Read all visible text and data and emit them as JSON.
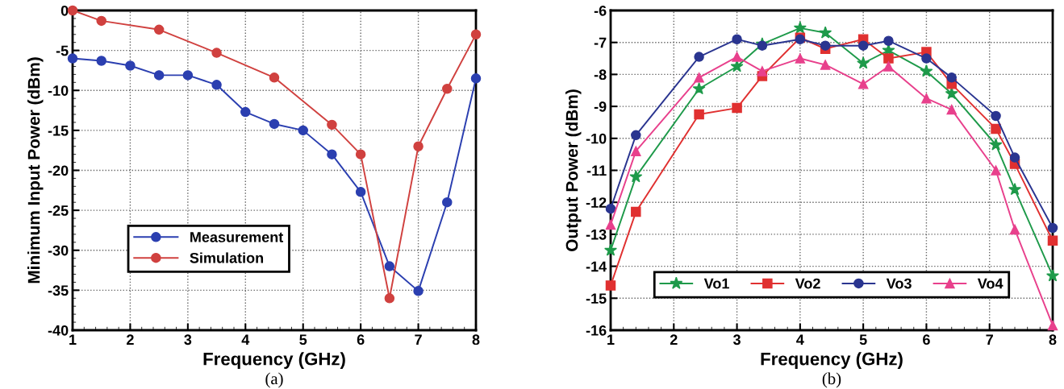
{
  "chart_data": [
    {
      "type": "line",
      "xlabel": "Frequency (GHz)",
      "ylabel": "Minimum Input Power (dBm)",
      "xlim": [
        1,
        8
      ],
      "ylim": [
        -40,
        0
      ],
      "xticks": [
        1,
        2,
        3,
        4,
        5,
        6,
        7,
        8
      ],
      "yticks": [
        -40,
        -35,
        -30,
        -25,
        -20,
        -15,
        -10,
        -5,
        0
      ],
      "grid": true,
      "legend": "bottom left",
      "line_style": "solid",
      "annotations": [
        "(a)"
      ],
      "series": [
        {
          "name": "Measurement",
          "color": "#2b3fb0",
          "marker": "circle",
          "x": [
            1,
            1.5,
            2,
            2.5,
            3,
            3.5,
            4,
            4.5,
            5,
            5.5,
            6,
            6.5,
            7,
            7.5,
            8
          ],
          "values": [
            -6,
            -6.3,
            -6.9,
            -8.1,
            -8.1,
            -9.3,
            -12.7,
            -14.2,
            -15,
            -18,
            -22.7,
            -32,
            -35.1,
            -24,
            -8.5
          ]
        },
        {
          "name": "Simulation",
          "color": "#d0413f",
          "marker": "circle",
          "x": [
            1,
            1.5,
            2.5,
            3.5,
            4.5,
            5.5,
            6,
            6.5,
            7,
            7.5,
            8
          ],
          "values": [
            0,
            -1.3,
            -2.4,
            -5.3,
            -8.4,
            -14.3,
            -18,
            -36,
            -17,
            -9.8,
            -3
          ]
        }
      ]
    },
    {
      "type": "line",
      "xlabel": "Frequency (GHz)",
      "ylabel": "Output Power (dBm)",
      "xlim": [
        1,
        8
      ],
      "ylim": [
        -16,
        -6
      ],
      "xticks": [
        1,
        2,
        3,
        4,
        5,
        6,
        7,
        8
      ],
      "yticks": [
        -16,
        -15,
        -14,
        -13,
        -12,
        -11,
        -10,
        -9,
        -8,
        -7,
        -6
      ],
      "grid": true,
      "legend": "bottom",
      "line_style": "solid",
      "annotations": [
        "(b)"
      ],
      "series": [
        {
          "name": "Vo1",
          "color": "#1e9a4a",
          "marker": "star",
          "x": [
            1,
            1.4,
            2.4,
            3,
            3.4,
            4,
            4.4,
            5,
            5.4,
            6,
            6.4,
            7.1,
            7.4,
            8
          ],
          "values": [
            -13.5,
            -11.2,
            -8.45,
            -7.75,
            -7.05,
            -6.55,
            -6.7,
            -7.65,
            -7.25,
            -7.9,
            -8.6,
            -10.2,
            -11.6,
            -14.3
          ]
        },
        {
          "name": "Vo2",
          "color": "#e03030",
          "marker": "square",
          "x": [
            1,
            1.4,
            2.4,
            3,
            3.4,
            4,
            4.4,
            5,
            5.4,
            6,
            6.4,
            7.1,
            7.4,
            8
          ],
          "values": [
            -14.6,
            -12.3,
            -9.25,
            -9.05,
            -8.05,
            -6.85,
            -7.2,
            -6.9,
            -7.5,
            -7.3,
            -8.3,
            -9.7,
            -10.8,
            -13.2
          ]
        },
        {
          "name": "Vo3",
          "color": "#2a3590",
          "marker": "circle",
          "x": [
            1,
            1.4,
            2.4,
            3,
            3.4,
            4,
            4.4,
            5,
            5.4,
            6,
            6.4,
            7.1,
            7.4,
            8
          ],
          "values": [
            -12.2,
            -9.9,
            -7.45,
            -6.9,
            -7.1,
            -6.9,
            -7.1,
            -7.1,
            -6.95,
            -7.5,
            -8.1,
            -9.3,
            -10.6,
            -12.8
          ]
        },
        {
          "name": "Vo4",
          "color": "#e8408c",
          "marker": "triangle",
          "x": [
            1,
            1.4,
            2.4,
            3,
            3.4,
            4,
            4.4,
            5,
            5.4,
            6,
            6.4,
            7.1,
            7.4,
            8
          ],
          "values": [
            -12.7,
            -10.4,
            -8.1,
            -7.45,
            -7.9,
            -7.5,
            -7.7,
            -8.3,
            -7.75,
            -8.75,
            -9.1,
            -11.0,
            -12.85,
            -15.85
          ]
        }
      ]
    }
  ]
}
